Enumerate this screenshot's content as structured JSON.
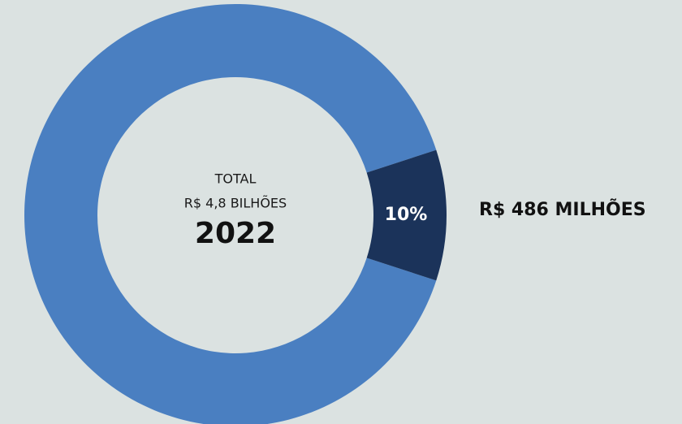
{
  "chart_data": {
    "type": "donut",
    "annotations": [
      "TOTAL",
      "R$ 4,8 BILHÕES",
      "2022"
    ],
    "categories": [
      null,
      "R$ 486 MILHÕES"
    ],
    "values": [
      90,
      10
    ],
    "value_labels": [
      null,
      "10%"
    ],
    "colors": [
      "#4a7fc1",
      "#1b335a"
    ]
  }
}
